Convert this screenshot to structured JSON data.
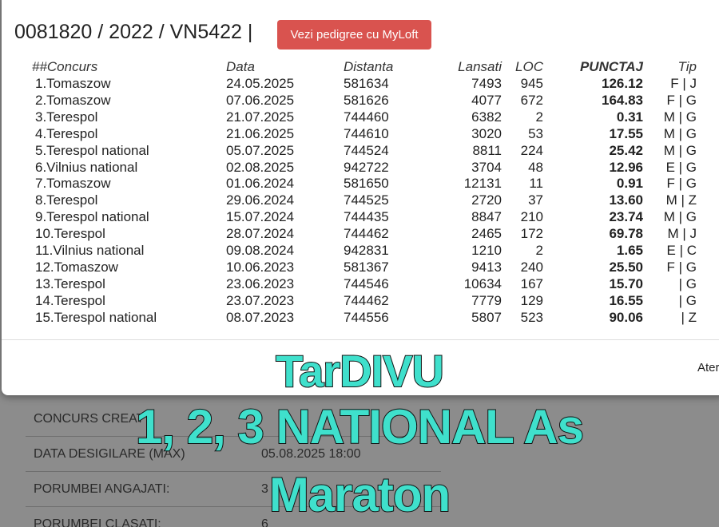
{
  "header": {
    "title": "0081820 / 2022 / VN5422 |",
    "button": "Vezi pedigree cu MyLoft"
  },
  "table": {
    "columns": [
      "##Concurs",
      "Data",
      "Distanta",
      "Lansati",
      "LOC",
      "PUNCTAJ",
      "Tip"
    ],
    "rows": [
      [
        "1.Tomaszow",
        "24.05.2025",
        "581634",
        "7493",
        "945",
        "126.12",
        "F | J"
      ],
      [
        "2.Tomaszow",
        "07.06.2025",
        "581626",
        "4077",
        "672",
        "164.83",
        "F | G"
      ],
      [
        "3.Terespol",
        "21.07.2025",
        "744460",
        "6382",
        "2",
        "0.31",
        "M | G"
      ],
      [
        "4.Terespol",
        "21.06.2025",
        "744610",
        "3020",
        "53",
        "17.55",
        "M | G"
      ],
      [
        "5.Terespol national",
        "05.07.2025",
        "744524",
        "8811",
        "224",
        "25.42",
        "M | G"
      ],
      [
        "6.Vilnius national",
        "02.08.2025",
        "942722",
        "3704",
        "48",
        "12.96",
        "E | G"
      ],
      [
        "7.Tomaszow",
        "01.06.2024",
        "581650",
        "12131",
        "11",
        "0.91",
        "F | G"
      ],
      [
        "8.Terespol",
        "29.06.2024",
        "744525",
        "2720",
        "37",
        "13.60",
        "M | Z"
      ],
      [
        "9.Terespol national",
        "15.07.2024",
        "744435",
        "8847",
        "210",
        "23.74",
        "M | G"
      ],
      [
        "10.Terespol",
        "28.07.2024",
        "744462",
        "2465",
        "172",
        "69.78",
        "M | J"
      ],
      [
        "11.Vilnius national",
        "09.08.2024",
        "942831",
        "1210",
        "2",
        "1.65",
        "E | C"
      ],
      [
        "12.Tomaszow",
        "10.06.2023",
        "581367",
        "9413",
        "240",
        "25.50",
        "F | G"
      ],
      [
        "13.Terespol",
        "23.06.2023",
        "744546",
        "10634",
        "167",
        "15.70",
        "| G"
      ],
      [
        "14.Terespol",
        "23.07.2023",
        "744462",
        "7779",
        "129",
        "16.55",
        "| G"
      ],
      [
        "15.Terespol national",
        "08.07.2023",
        "744556",
        "5807",
        "523",
        "90.06",
        "| Z"
      ]
    ]
  },
  "footer": {
    "button": "Ater"
  },
  "details": [
    {
      "label": "CONCURS CREAT"
    },
    {
      "label": "DATA DESIGILARE (MAX)",
      "value": "05.08.2025 18:00"
    },
    {
      "label": "PORUMBEI ANGAJATI:",
      "value": "3"
    },
    {
      "label": "PORUMBEI CLASATI:",
      "value": "6"
    }
  ],
  "overlay": {
    "lines": [
      "TarDIVU",
      "1, 2, 3 NATIONAL As",
      "Maraton"
    ]
  }
}
